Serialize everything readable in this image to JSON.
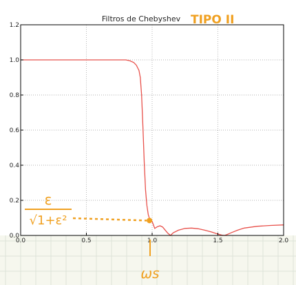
{
  "chart_data": {
    "type": "line",
    "title": "Filtros de Chebyshev",
    "xlabel": "",
    "ylabel": "",
    "xlim": [
      0.0,
      2.0
    ],
    "ylim": [
      0.0,
      1.2
    ],
    "xticks": [
      "0.0",
      "0.5",
      "1.0",
      "1.5",
      "2.0"
    ],
    "yticks": [
      "0.0",
      "0.2",
      "0.4",
      "0.6",
      "0.8",
      "1.0",
      "1.2"
    ],
    "grid": true,
    "series": [
      {
        "color": "#e8504a",
        "x": [
          0.0,
          0.2,
          0.4,
          0.6,
          0.75,
          0.8,
          0.83,
          0.86,
          0.88,
          0.9,
          0.91,
          0.92,
          0.93,
          0.94,
          0.95,
          0.96,
          0.97,
          0.98,
          0.99,
          1.0,
          1.02,
          1.04,
          1.06,
          1.08,
          1.1,
          1.12,
          1.14,
          1.16,
          1.2,
          1.25,
          1.3,
          1.35,
          1.4,
          1.45,
          1.5,
          1.53,
          1.55,
          1.57,
          1.6,
          1.65,
          1.7,
          1.8,
          1.9,
          2.0
        ],
        "y": [
          1.0,
          1.0,
          1.0,
          1.0,
          1.0,
          1.0,
          0.995,
          0.985,
          0.97,
          0.94,
          0.9,
          0.8,
          0.62,
          0.42,
          0.26,
          0.17,
          0.12,
          0.095,
          0.085,
          0.08,
          0.04,
          0.05,
          0.055,
          0.048,
          0.03,
          0.012,
          0.0,
          0.015,
          0.03,
          0.04,
          0.042,
          0.038,
          0.03,
          0.02,
          0.008,
          0.002,
          0.0,
          0.005,
          0.015,
          0.03,
          0.042,
          0.052,
          0.057,
          0.06
        ]
      }
    ]
  },
  "annotations": {
    "title_suffix": "TIPO II",
    "epsilon_numerator": "ε",
    "epsilon_denominator": "√1+ε²",
    "omega_label": "ωs",
    "marker_x": 0.98,
    "marker_y": 0.085,
    "accent_color": "#f0a020"
  }
}
